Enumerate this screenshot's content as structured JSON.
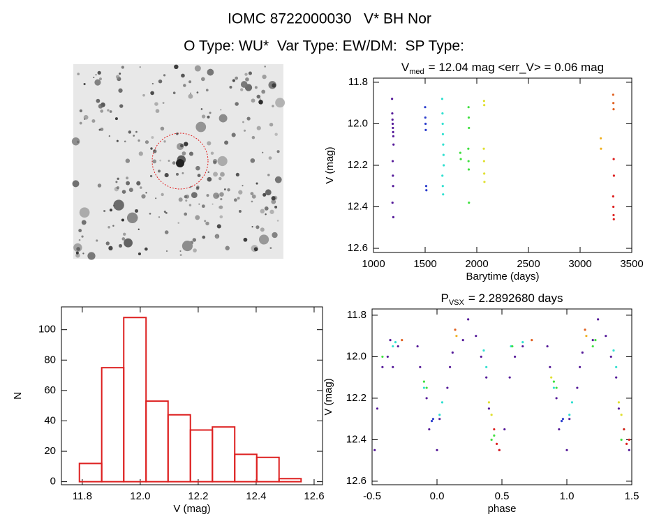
{
  "header": {
    "title": "IOMC 8722000030   V* BH Nor",
    "subtitle": "O Type: WU*  Var Type: EW/DM:  SP Type:"
  },
  "chart_data": [
    {
      "type": "scatter",
      "title": "V",
      "title_sub": "med",
      "title_rest": "= 12.04 mag <err_V> = 0.06 mag",
      "xlabel": "Barytime (days)",
      "ylabel": "V (mag)",
      "xlim": [
        1000,
        3500
      ],
      "xticks": [
        1000,
        1500,
        2000,
        2500,
        3000,
        3500
      ],
      "ylim": [
        12.62,
        11.78
      ],
      "yticks": [
        11.8,
        {
          "value": 12,
          "label": "12.0"
        },
        12.2,
        12.4,
        12.6
      ],
      "series": [
        {
          "color": "#551a99",
          "x": [
            1180,
            1182,
            1184,
            1186,
            1188,
            1190,
            1192,
            1194,
            1186,
            1188,
            1190,
            1184,
            1192
          ],
          "values": [
            11.88,
            11.95,
            11.98,
            12.0,
            12.02,
            12.04,
            12.06,
            12.1,
            12.18,
            12.25,
            12.3,
            12.38,
            12.45
          ]
        },
        {
          "color": "#2a3ccc",
          "x": [
            1500,
            1502,
            1504,
            1506,
            1510,
            1512
          ],
          "values": [
            11.92,
            11.97,
            12.0,
            12.03,
            12.3,
            12.32
          ]
        },
        {
          "color": "#30e0d0",
          "x": [
            1665,
            1668,
            1670,
            1672,
            1675,
            1678,
            1680,
            1667,
            1671,
            1674
          ],
          "values": [
            11.88,
            11.95,
            12.0,
            12.05,
            12.1,
            12.15,
            12.2,
            12.25,
            12.3,
            12.34
          ]
        },
        {
          "color": "#40e040",
          "x": [
            1840,
            1845,
            1920,
            1922,
            1924,
            1918,
            1920,
            1922,
            1924
          ],
          "values": [
            12.14,
            12.17,
            11.92,
            11.97,
            12.02,
            12.12,
            12.18,
            12.22,
            12.38
          ]
        },
        {
          "color": "#e0e030",
          "x": [
            2070,
            2072,
            2068,
            2070,
            2072,
            2074
          ],
          "values": [
            11.89,
            11.91,
            12.12,
            12.18,
            12.24,
            12.28
          ]
        },
        {
          "color": "#f0b020",
          "x": [
            3200,
            3202
          ],
          "values": [
            12.07,
            12.12
          ]
        },
        {
          "color": "#e06020",
          "x": [
            3320,
            3322,
            3324
          ],
          "values": [
            11.86,
            11.9,
            11.93
          ]
        },
        {
          "color": "#dd2020",
          "x": [
            3325,
            3327,
            3320,
            3322,
            3324,
            3326
          ],
          "values": [
            12.17,
            12.25,
            12.35,
            12.4,
            12.44,
            12.46
          ]
        }
      ]
    },
    {
      "type": "histogram",
      "xlabel": "V (mag)",
      "ylabel": "N",
      "color": "#dd2020",
      "bins": [
        11.79,
        11.867,
        11.943,
        12.02,
        12.096,
        12.173,
        12.249,
        12.326,
        12.402,
        12.479,
        12.555
      ],
      "values": [
        12,
        75,
        108,
        53,
        44,
        34,
        36,
        18,
        16,
        2
      ],
      "xlim": [
        11.728,
        12.629
      ],
      "xticks": [
        11.8,
        {
          "value": 12,
          "label": "12.0"
        },
        12.2,
        12.4,
        12.6
      ],
      "ylim": [
        -2,
        115
      ],
      "yticks": [
        0,
        20,
        40,
        60,
        80,
        100
      ]
    },
    {
      "type": "scatter",
      "title": "P",
      "title_sub": "VSX",
      "title_rest": "= 2.2892680 days",
      "xlabel": "phase",
      "ylabel": "V (mag)",
      "xlim": [
        -0.5,
        1.5
      ],
      "xticks": [
        -0.5,
        {
          "value": 0,
          "label": "0.0"
        },
        0.5,
        {
          "value": 1,
          "label": "1.0"
        },
        1.5
      ],
      "ylim": [
        12.617,
        11.77
      ],
      "yticks": [
        11.8,
        {
          "value": 12,
          "label": "12.0"
        },
        12.2,
        12.4,
        12.6
      ],
      "series": [
        {
          "color": "#551a99",
          "x": [
            -0.48,
            -0.46,
            -0.42,
            -0.38,
            -0.36,
            -0.34,
            -0.3,
            -0.15,
            -0.13,
            -0.08,
            -0.06,
            0.0,
            0.02,
            0.08,
            0.1,
            0.12,
            0.2,
            0.24,
            0.3,
            0.34,
            0.38,
            0.4,
            0.48,
            0.52,
            0.56,
            0.6,
            0.66,
            0.85,
            0.87,
            0.92,
            0.94,
            1.0,
            1.02,
            1.08,
            1.1,
            1.12,
            1.2,
            1.24,
            1.3,
            1.34,
            1.38,
            1.4,
            1.48
          ],
          "values": [
            12.45,
            12.25,
            12.05,
            12.0,
            11.92,
            12.05,
            11.95,
            11.95,
            12.05,
            12.2,
            12.35,
            12.45,
            12.3,
            12.15,
            12.05,
            11.98,
            11.92,
            11.82,
            11.9,
            12.0,
            12.1,
            12.25,
            12.45,
            12.35,
            12.1,
            12.0,
            11.95,
            11.95,
            12.05,
            12.2,
            12.35,
            12.45,
            12.3,
            12.15,
            12.05,
            11.98,
            11.92,
            11.82,
            11.9,
            12.0,
            12.1,
            12.25,
            12.45
          ]
        },
        {
          "color": "#2a3ccc",
          "x": [
            -0.04,
            -0.03,
            0.96,
            0.97
          ],
          "values": [
            12.31,
            12.3,
            12.31,
            12.3
          ]
        },
        {
          "color": "#30e0d0",
          "x": [
            -0.34,
            -0.32,
            -0.1,
            0.02,
            0.04,
            0.36,
            0.38,
            0.57,
            0.66,
            0.9,
            1.02,
            1.04,
            1.36,
            1.38
          ],
          "values": [
            11.95,
            11.93,
            12.15,
            12.28,
            12.22,
            11.97,
            12.05,
            11.95,
            11.93,
            12.15,
            12.28,
            12.22,
            11.97,
            12.05
          ]
        },
        {
          "color": "#40e040",
          "x": [
            -0.42,
            -0.1,
            -0.08,
            0.42,
            0.44,
            0.58,
            0.9,
            0.92,
            1.2,
            1.22,
            1.42,
            1.44
          ],
          "values": [
            12.0,
            12.12,
            12.15,
            12.4,
            12.38,
            11.95,
            12.12,
            12.15,
            11.95,
            11.92,
            12.4,
            12.35
          ]
        },
        {
          "color": "#e0e030",
          "x": [
            0.4,
            0.42,
            0.88,
            1.4,
            1.42
          ],
          "values": [
            12.22,
            12.28,
            12.1,
            12.22,
            12.28
          ]
        },
        {
          "color": "#f0b020",
          "x": [
            0.15,
            1.15
          ],
          "values": [
            11.9,
            11.9
          ]
        },
        {
          "color": "#e06020",
          "x": [
            -0.27,
            0.14,
            0.73,
            1.14
          ],
          "values": [
            11.92,
            11.87,
            11.92,
            11.87
          ]
        },
        {
          "color": "#dd2020",
          "x": [
            0.44,
            0.46,
            0.48,
            1.44,
            1.46,
            1.48
          ],
          "values": [
            12.35,
            12.42,
            12.45,
            12.35,
            12.42,
            12.4
          ]
        }
      ]
    }
  ]
}
